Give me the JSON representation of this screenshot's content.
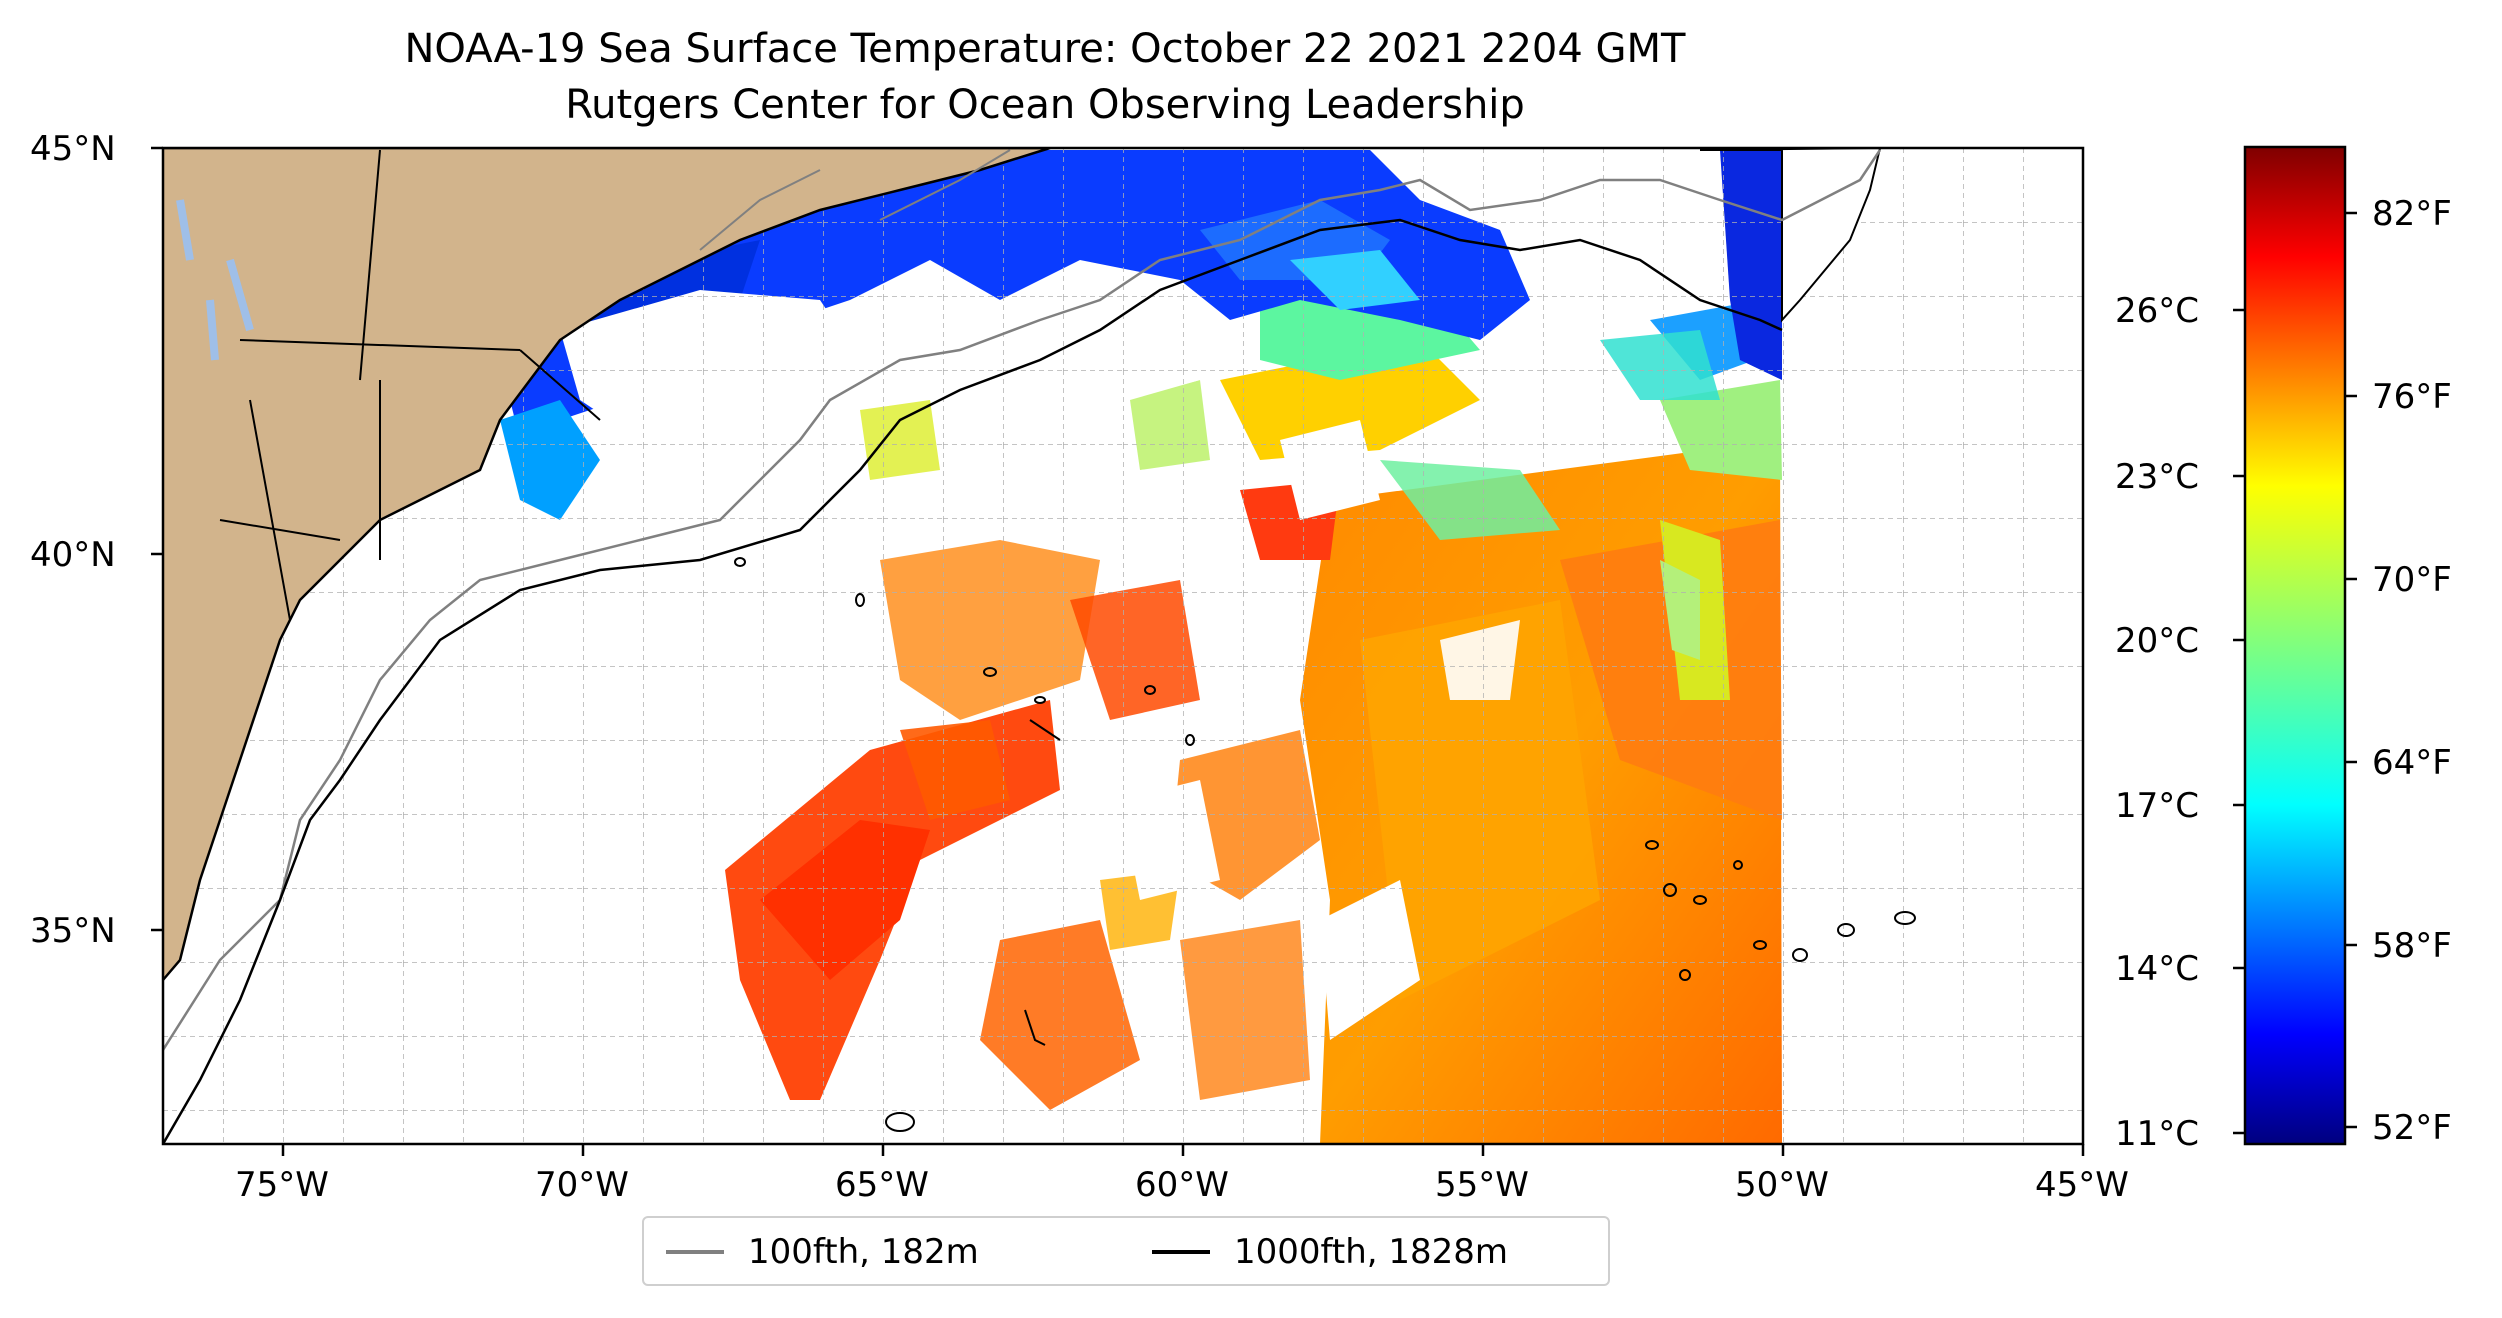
{
  "title": "NOAA-19 Sea Surface Temperature: October 22 2021 2204 GMT",
  "subtitle": "Rutgers Center for Ocean Observing Leadership",
  "map": {
    "lon_range": [
      -77,
      -45
    ],
    "lat_range": [
      32.2,
      45
    ],
    "lon_ticks": [
      "75°W",
      "70°W",
      "65°W",
      "60°W",
      "55°W",
      "50°W",
      "45°W"
    ],
    "lat_ticks": [
      "45°N",
      "40°N",
      "35°N"
    ],
    "gridlines": true,
    "colors": {
      "land": "#d2b48c",
      "lakes": "#a6c8ea",
      "contour_100fth": "#808080",
      "contour_1000fth": "#000000",
      "grid": "#b0b0b0"
    }
  },
  "colorbar": {
    "colormap": "jet",
    "celsius_ticks": [
      "26°C",
      "23°C",
      "20°C",
      "17°C",
      "14°C",
      "11°C"
    ],
    "fahrenheit_ticks": [
      "82°F",
      "76°F",
      "70°F",
      "64°F",
      "58°F",
      "52°F"
    ]
  },
  "legend": {
    "items": [
      {
        "label": "100fth, 182m",
        "color": "#808080"
      },
      {
        "label": "1000fth, 1828m",
        "color": "#000000"
      }
    ]
  }
}
